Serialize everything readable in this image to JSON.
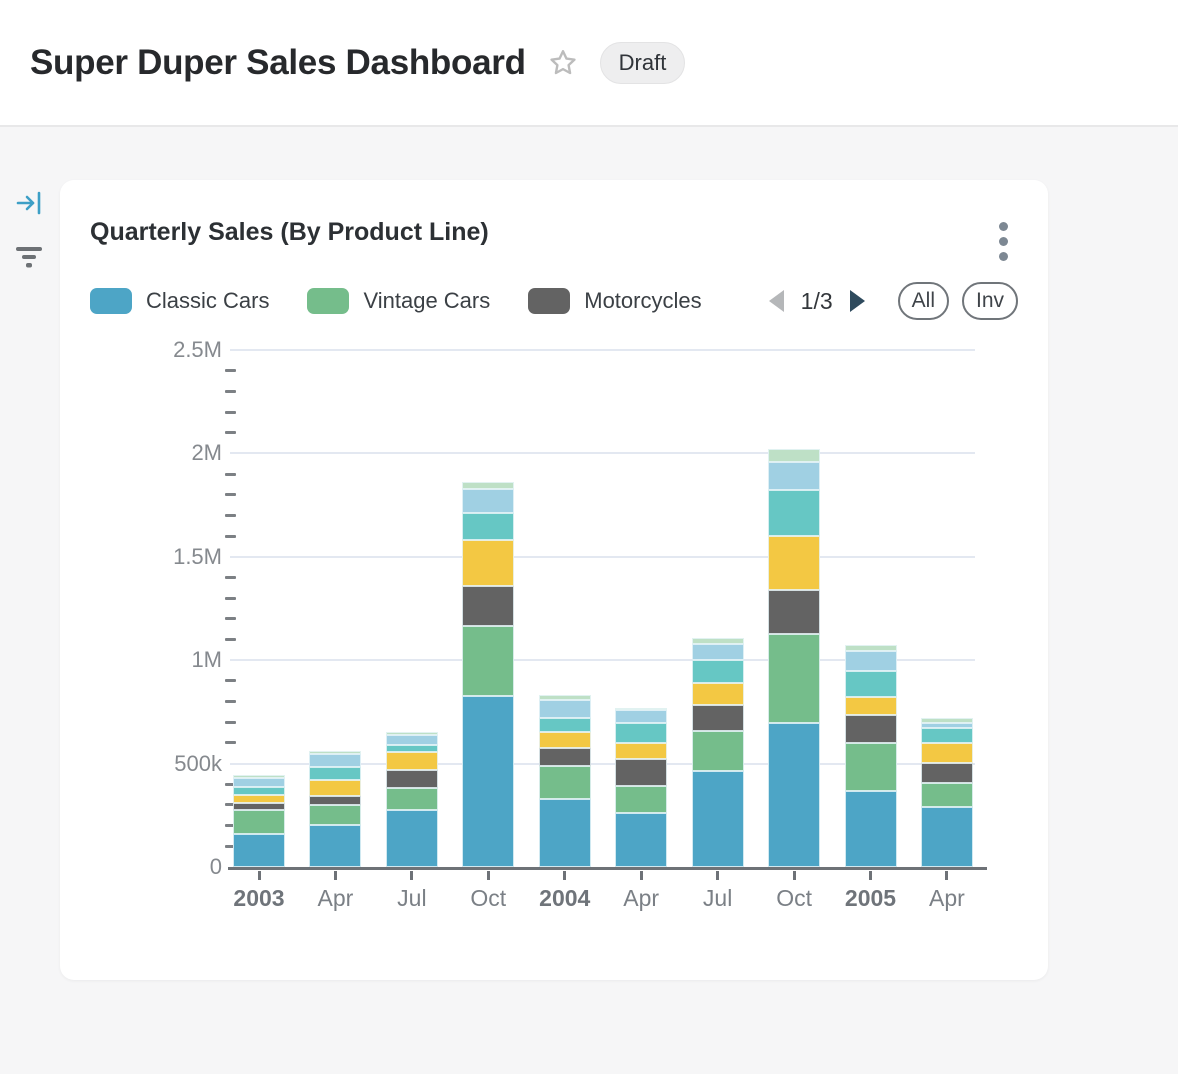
{
  "page": {
    "title": "Super Duper Sales Dashboard",
    "status_badge": "Draft"
  },
  "card": {
    "title": "Quarterly Sales (By Product Line)",
    "legend_pager": {
      "page_indicator": "1/3"
    },
    "buttons": {
      "all": "All",
      "invert": "Inv"
    }
  },
  "chart_data": {
    "type": "bar",
    "stacked": true,
    "title": "Quarterly Sales (By Product Line)",
    "categories": [
      "2003",
      "Apr",
      "Jul",
      "Oct",
      "2004",
      "Apr",
      "Jul",
      "Oct",
      "2005",
      "Apr"
    ],
    "series": [
      {
        "name": "Classic Cars",
        "in_legend": true,
        "color": "#4da5c6",
        "values": [
          160000,
          203000,
          276000,
          828000,
          329000,
          260000,
          464000,
          695000,
          368000,
          292000
        ]
      },
      {
        "name": "Vintage Cars",
        "in_legend": true,
        "color": "#75bd8b",
        "values": [
          115000,
          97000,
          108000,
          337000,
          160000,
          132000,
          193000,
          433000,
          234000,
          113000
        ]
      },
      {
        "name": "Motorcycles",
        "in_legend": true,
        "color": "#636363",
        "values": [
          35000,
          45000,
          86000,
          195000,
          88000,
          131000,
          124000,
          211000,
          134000,
          97000
        ]
      },
      {
        "name": "",
        "in_legend": false,
        "color": "#f3c843",
        "values": [
          40000,
          76000,
          84000,
          221000,
          77000,
          76000,
          109000,
          263000,
          87000,
          97000
        ]
      },
      {
        "name": "",
        "in_legend": false,
        "color": "#66c7c4",
        "values": [
          38000,
          61000,
          34000,
          129000,
          68000,
          100000,
          113000,
          221000,
          127000,
          71000
        ]
      },
      {
        "name": "",
        "in_legend": false,
        "color": "#a0d0e3",
        "values": [
          42000,
          63000,
          52000,
          116000,
          86000,
          61000,
          77000,
          134000,
          97000,
          29000
        ]
      },
      {
        "name": "",
        "in_legend": false,
        "color": "#bee0c6",
        "values": [
          13000,
          16000,
          13000,
          37000,
          24000,
          8000,
          29000,
          63000,
          28000,
          21000
        ]
      }
    ],
    "y_axis": {
      "max": 2500000,
      "minor_tick_step": 100000,
      "ticks": [
        {
          "value": 0,
          "label": "0"
        },
        {
          "value": 500000,
          "label": "500k"
        },
        {
          "value": 1000000,
          "label": "1M"
        },
        {
          "value": 1500000,
          "label": "1.5M"
        },
        {
          "value": 2000000,
          "label": "2M"
        },
        {
          "value": 2500000,
          "label": "2.5M"
        }
      ]
    },
    "legend_pages": 3,
    "legend_position": "top",
    "grid": true
  }
}
